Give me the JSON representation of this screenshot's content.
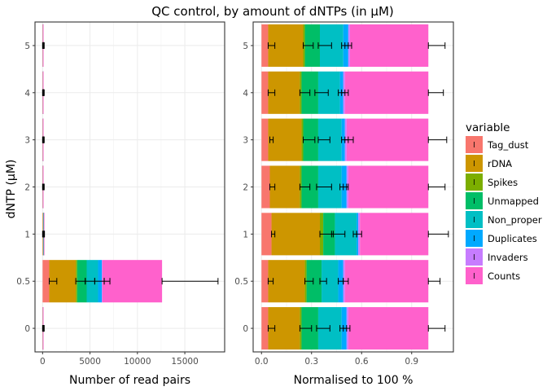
{
  "chart_data": {
    "type": "bar",
    "orientation": "horizontal",
    "stacked": true,
    "title": "QC control, by amount of dNTPs (in µM)",
    "ylabel": "dNTP (µM)",
    "categories": [
      "0",
      "0.5",
      "1",
      "2",
      "3",
      "4",
      "5"
    ],
    "legend": {
      "title": "variable",
      "placement": "right",
      "entries": [
        "Tag_dust",
        "rDNA",
        "Spikes",
        "Unmapped",
        "Non_proper",
        "Duplicates",
        "Invaders",
        "Counts"
      ],
      "colors": [
        "#F8766D",
        "#CD9600",
        "#7CAE00",
        "#00BE67",
        "#00BFC4",
        "#00A9FF",
        "#C77CFF",
        "#FF61CC"
      ]
    },
    "panels": [
      {
        "xlabel": "Number of read pairs",
        "xlim": [
          -800,
          19200
        ],
        "xticks": [
          0,
          5000,
          10000,
          15000
        ],
        "xtick_labels": [
          "0",
          "5000",
          "10000",
          "15000"
        ],
        "grid": true,
        "series": [
          {
            "name": "Tag_dust",
            "values": [
              5,
              700,
              25,
              5,
              5,
              5,
              5
            ]
          },
          {
            "name": "rDNA",
            "values": [
              5,
              2800,
              25,
              5,
              5,
              5,
              5
            ]
          },
          {
            "name": "Spikes",
            "values": [
              2,
              150,
              10,
              2,
              2,
              2,
              2
            ]
          },
          {
            "name": "Unmapped",
            "values": [
              5,
              1000,
              25,
              5,
              5,
              5,
              5
            ]
          },
          {
            "name": "Non_proper",
            "values": [
              5,
              1200,
              25,
              5,
              5,
              5,
              5
            ]
          },
          {
            "name": "Duplicates",
            "values": [
              5,
              400,
              10,
              5,
              5,
              5,
              5
            ]
          },
          {
            "name": "Invaders",
            "values": [
              2,
              50,
              3,
              2,
              2,
              2,
              2
            ]
          },
          {
            "name": "Counts",
            "values": [
              25,
              6300,
              25,
              25,
              25,
              25,
              25
            ]
          }
        ],
        "error_bars": [
          {
            "category": "0",
            "errors": [
              [
                0,
                40
              ],
              [
                40,
                90
              ],
              [
                90,
                120
              ],
              [
                120,
                170
              ]
            ]
          },
          {
            "category": "0.5",
            "errors": [
              [
                700,
                1500
              ],
              [
                3500,
                4500
              ],
              [
                4500,
                5500
              ],
              [
                5500,
                6500
              ],
              [
                6500,
                7100
              ],
              [
                12600,
                18500
              ]
            ]
          },
          {
            "category": "1",
            "errors": [
              [
                0,
                60
              ],
              [
                60,
                120
              ],
              [
                120,
                160
              ],
              [
                160,
                200
              ]
            ]
          },
          {
            "category": "2",
            "errors": [
              [
                0,
                40
              ],
              [
                40,
                90
              ],
              [
                90,
                120
              ],
              [
                120,
                170
              ]
            ]
          },
          {
            "category": "3",
            "errors": [
              [
                0,
                40
              ],
              [
                40,
                90
              ],
              [
                90,
                120
              ],
              [
                120,
                170
              ]
            ]
          },
          {
            "category": "4",
            "errors": [
              [
                0,
                40
              ],
              [
                40,
                90
              ],
              [
                90,
                120
              ],
              [
                120,
                170
              ]
            ]
          },
          {
            "category": "5",
            "errors": [
              [
                0,
                40
              ],
              [
                40,
                90
              ],
              [
                90,
                120
              ],
              [
                120,
                170
              ]
            ]
          }
        ]
      },
      {
        "xlabel": "Normalised to 100 %",
        "xlim": [
          -0.05,
          1.15
        ],
        "xticks": [
          0.0,
          0.3,
          0.6,
          0.9
        ],
        "xtick_labels": [
          "0.0",
          "0.3",
          "0.6",
          "0.9"
        ],
        "grid": true,
        "series": [
          {
            "name": "Tag_dust",
            "values": [
              0.04,
              0.04,
              0.06,
              0.05,
              0.04,
              0.04,
              0.04
            ]
          },
          {
            "name": "rDNA",
            "values": [
              0.19,
              0.22,
              0.29,
              0.18,
              0.2,
              0.19,
              0.21
            ]
          },
          {
            "name": "Spikes",
            "values": [
              0.01,
              0.01,
              0.02,
              0.01,
              0.01,
              0.01,
              0.01
            ]
          },
          {
            "name": "Unmapped",
            "values": [
              0.1,
              0.09,
              0.07,
              0.1,
              0.09,
              0.1,
              0.09
            ]
          },
          {
            "name": "Non_proper",
            "values": [
              0.14,
              0.1,
              0.13,
              0.14,
              0.14,
              0.13,
              0.14
            ]
          },
          {
            "name": "Duplicates",
            "values": [
              0.03,
              0.03,
              0.01,
              0.03,
              0.02,
              0.02,
              0.03
            ]
          },
          {
            "name": "Invaders",
            "values": [
              0.01,
              0.01,
              0.01,
              0.01,
              0.01,
              0.01,
              0.01
            ]
          },
          {
            "name": "Counts",
            "values": [
              0.48,
              0.5,
              0.41,
              0.48,
              0.49,
              0.5,
              0.47
            ]
          }
        ],
        "error_bars": [
          {
            "category": "0",
            "errors": [
              [
                0.04,
                0.08
              ],
              [
                0.23,
                0.3
              ],
              [
                0.33,
                0.41
              ],
              [
                0.47,
                0.51
              ],
              [
                0.49,
                0.53
              ],
              [
                1.0,
                1.1
              ]
            ]
          },
          {
            "category": "0.5",
            "errors": [
              [
                0.04,
                0.07
              ],
              [
                0.26,
                0.31
              ],
              [
                0.35,
                0.39
              ],
              [
                0.46,
                0.49
              ],
              [
                0.49,
                0.52
              ],
              [
                1.0,
                1.07
              ]
            ]
          },
          {
            "category": "1",
            "errors": [
              [
                0.06,
                0.08
              ],
              [
                0.35,
                0.43
              ],
              [
                0.42,
                0.5
              ],
              [
                0.55,
                0.57
              ],
              [
                0.57,
                0.6
              ],
              [
                1.0,
                1.12
              ]
            ]
          },
          {
            "category": "2",
            "errors": [
              [
                0.05,
                0.08
              ],
              [
                0.23,
                0.29
              ],
              [
                0.33,
                0.42
              ],
              [
                0.47,
                0.51
              ],
              [
                0.49,
                0.52
              ],
              [
                1.0,
                1.1
              ]
            ]
          },
          {
            "category": "3",
            "errors": [
              [
                0.05,
                0.07
              ],
              [
                0.25,
                0.32
              ],
              [
                0.34,
                0.41
              ],
              [
                0.48,
                0.52
              ],
              [
                0.5,
                0.55
              ],
              [
                1.0,
                1.11
              ]
            ]
          },
          {
            "category": "4",
            "errors": [
              [
                0.04,
                0.08
              ],
              [
                0.23,
                0.29
              ],
              [
                0.32,
                0.4
              ],
              [
                0.46,
                0.5
              ],
              [
                0.48,
                0.52
              ],
              [
                1.0,
                1.09
              ]
            ]
          },
          {
            "category": "5",
            "errors": [
              [
                0.04,
                0.08
              ],
              [
                0.25,
                0.31
              ],
              [
                0.34,
                0.42
              ],
              [
                0.48,
                0.52
              ],
              [
                0.5,
                0.54
              ],
              [
                1.0,
                1.1
              ]
            ]
          }
        ]
      }
    ]
  }
}
